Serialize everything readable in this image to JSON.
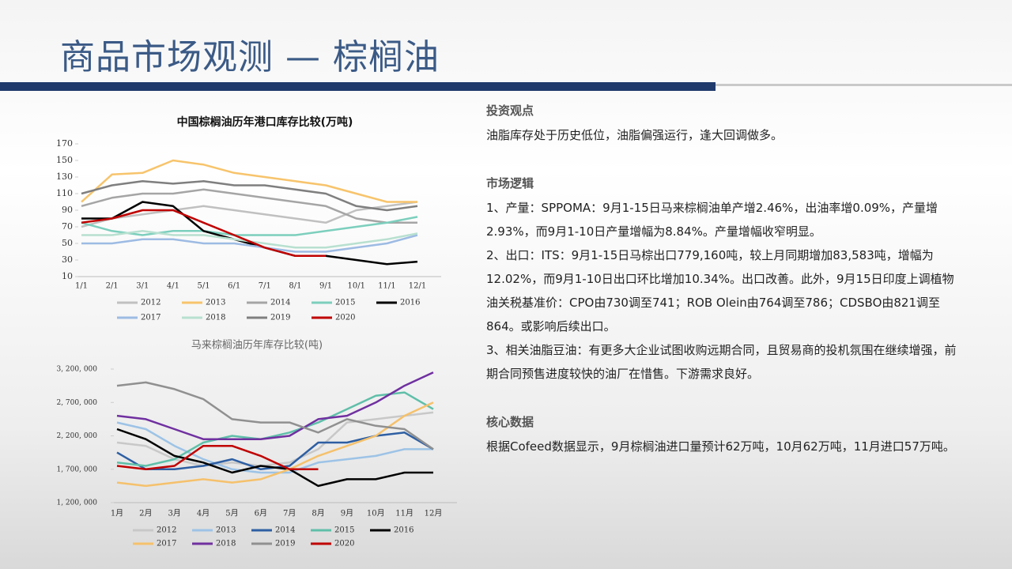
{
  "title": "商品市场观测 — 棕榈油",
  "chart_data": [
    {
      "type": "line",
      "title": "中国棕榈油历年港口库存比较(万吨)",
      "categories": [
        "1/1",
        "2/1",
        "3/1",
        "4/1",
        "5/1",
        "6/1",
        "7/1",
        "8/1",
        "9/1",
        "10/1",
        "11/1",
        "12/1"
      ],
      "ylim": [
        10,
        170
      ],
      "yticks": [
        10,
        30,
        50,
        70,
        90,
        110,
        130,
        150,
        170
      ],
      "series": [
        {
          "name": "2012",
          "color": "#c0c0c0",
          "values": [
            70,
            80,
            85,
            90,
            95,
            90,
            85,
            80,
            75,
            90,
            95,
            100
          ]
        },
        {
          "name": "2013",
          "color": "#f7c46c",
          "values": [
            100,
            133,
            135,
            150,
            145,
            135,
            130,
            125,
            120,
            110,
            100,
            100
          ]
        },
        {
          "name": "2014",
          "color": "#a5a5a5",
          "values": [
            95,
            105,
            110,
            110,
            115,
            110,
            105,
            100,
            95,
            80,
            75,
            75
          ]
        },
        {
          "name": "2015",
          "color": "#7ccfbd",
          "values": [
            75,
            65,
            60,
            65,
            65,
            60,
            60,
            60,
            65,
            70,
            75,
            82
          ]
        },
        {
          "name": "2016",
          "color": "#000000",
          "values": [
            80,
            80,
            100,
            95,
            65,
            55,
            45,
            35,
            35,
            30,
            25,
            28
          ]
        },
        {
          "name": "2017",
          "color": "#9dbbe3",
          "values": [
            50,
            50,
            55,
            55,
            50,
            50,
            45,
            40,
            40,
            45,
            50,
            60
          ]
        },
        {
          "name": "2018",
          "color": "#b8e0d0",
          "values": [
            60,
            60,
            65,
            60,
            60,
            55,
            50,
            45,
            45,
            50,
            55,
            62
          ]
        },
        {
          "name": "2019",
          "color": "#7f7f7f",
          "values": [
            110,
            120,
            125,
            122,
            125,
            120,
            120,
            115,
            110,
            95,
            90,
            95
          ]
        },
        {
          "name": "2020",
          "color": "#c00000",
          "values": [
            75,
            80,
            90,
            90,
            75,
            60,
            45,
            35,
            35,
            null,
            null,
            null
          ]
        }
      ]
    },
    {
      "type": "line",
      "title": "马来棕榈油历年库存比较(吨)",
      "categories": [
        "1月",
        "2月",
        "3月",
        "4月",
        "5月",
        "6月",
        "7月",
        "8月",
        "9月",
        "10月",
        "11月",
        "12月"
      ],
      "ylim": [
        1200000,
        3200000
      ],
      "yticks": [
        {
          "value": 1200000,
          "label": "1, 200, 000"
        },
        {
          "value": 1700000,
          "label": "1, 700, 000"
        },
        {
          "value": 2200000,
          "label": "2, 200, 000"
        },
        {
          "value": 2700000,
          "label": "2, 700, 000"
        },
        {
          "value": 3200000,
          "label": "3, 200, 000"
        }
      ],
      "series": [
        {
          "name": "2012",
          "color": "#c8c8c8",
          "values": [
            2100000,
            2050000,
            1850000,
            1750000,
            1800000,
            1750000,
            1800000,
            2000000,
            2400000,
            2450000,
            2500000,
            2550000
          ]
        },
        {
          "name": "2013",
          "color": "#9dc3e6",
          "values": [
            2400000,
            2300000,
            2050000,
            1850000,
            1700000,
            1650000,
            1650000,
            1800000,
            1850000,
            1900000,
            2000000,
            2000000
          ]
        },
        {
          "name": "2014",
          "color": "#2e5fa3",
          "values": [
            1950000,
            1700000,
            1700000,
            1750000,
            1850000,
            1700000,
            1750000,
            2100000,
            2100000,
            2200000,
            2250000,
            2000000
          ]
        },
        {
          "name": "2015",
          "color": "#5fbfa9",
          "values": [
            1800000,
            1750000,
            1850000,
            2100000,
            2200000,
            2150000,
            2250000,
            2400000,
            2600000,
            2800000,
            2850000,
            2600000
          ]
        },
        {
          "name": "2016",
          "color": "#000000",
          "values": [
            2300000,
            2150000,
            1900000,
            1800000,
            1650000,
            1750000,
            1700000,
            1450000,
            1550000,
            1550000,
            1650000,
            1650000
          ]
        },
        {
          "name": "2017",
          "color": "#f5c16c",
          "values": [
            1500000,
            1450000,
            1500000,
            1550000,
            1500000,
            1550000,
            1700000,
            1900000,
            2050000,
            2200000,
            2500000,
            2700000
          ]
        },
        {
          "name": "2018",
          "color": "#7030a0",
          "values": [
            2500000,
            2450000,
            2300000,
            2150000,
            2150000,
            2150000,
            2200000,
            2450000,
            2500000,
            2700000,
            2950000,
            3150000
          ]
        },
        {
          "name": "2019",
          "color": "#909090",
          "values": [
            2950000,
            3000000,
            2900000,
            2750000,
            2450000,
            2400000,
            2400000,
            2250000,
            2450000,
            2350000,
            2300000,
            2000000
          ]
        },
        {
          "name": "2020",
          "color": "#c00000",
          "values": [
            1750000,
            1700000,
            1750000,
            2050000,
            2050000,
            1900000,
            1700000,
            1700000,
            null,
            null,
            null,
            null
          ]
        }
      ]
    }
  ],
  "sections": [
    {
      "heading": "投资观点",
      "paragraphs": [
        "油脂库存处于历史低位，油脂偏强运行，逢大回调做多。"
      ]
    },
    {
      "heading": "市场逻辑",
      "paragraphs": [
        "1、产量：SPPOMA：9月1-15日马来棕榈油单产增2.46%，出油率增0.09%，产量增2.93%，而9月1-10日产量增幅为8.84%。产量增幅收窄明显。",
        "2、出口：ITS：9月1-15日马棕出口779,160吨，较上月同期增加83,583吨，增幅为12.02%，而9月1-10日出口环比增加10.34%。出口改善。此外，9月15日印度上调植物油关税基准价：CPO由730调至741；ROB Olein由764调至786；CDSBO由821调至864。或影响后续出口。",
        "3、相关油脂豆油：有更多大企业试图收购远期合同，且贸易商的投机氛围在继续增强，前期合同预售进度较快的油厂在惜售。下游需求良好。"
      ]
    },
    {
      "heading": "核心数据",
      "paragraphs": [
        "根据Cofeed数据显示，9月棕榈油进口量预计62万吨，10月62万吨，11月进口57万吨。"
      ]
    }
  ]
}
